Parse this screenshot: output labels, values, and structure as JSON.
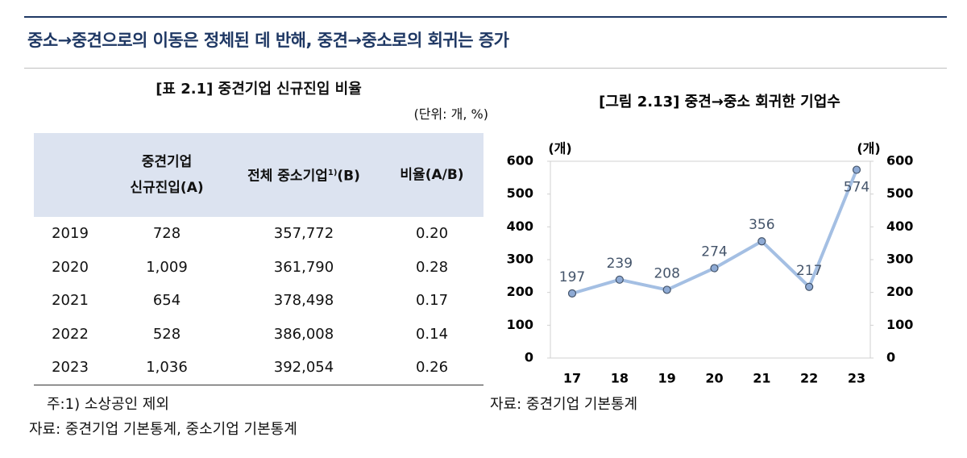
{
  "header": {
    "title": "중소→중견으로의 이동은 정체된 데 반해, 중견→중소로의 회귀는 증가"
  },
  "table": {
    "title": "[표 2.1] 중견기업 신규진입 비율",
    "unit": "(단위:  개, %)",
    "columns": [
      [
        "중견기업",
        "신규진입(A)"
      ],
      [
        "전체 중소기업",
        "1)",
        "(B)"
      ],
      [
        "비율(A/B)"
      ]
    ],
    "rows": [
      [
        "2019",
        "728",
        "357,772",
        "0.20"
      ],
      [
        "2020",
        "1,009",
        "361,790",
        "0.28"
      ],
      [
        "2021",
        "654",
        "378,498",
        "0.17"
      ],
      [
        "2022",
        "528",
        "386,008",
        "0.14"
      ],
      [
        "2023",
        "1,036",
        "392,054",
        "0.26"
      ]
    ],
    "notes": [
      "주:1) 소상공인 제외",
      "자료: 중견기업 기본통계, 중소기업 기본통계"
    ]
  },
  "chart_data": {
    "type": "line",
    "title": "[그림 2.13] 중견→중소 회귀한 기업수",
    "y_unit": "(개)",
    "y2_unit": "(개)",
    "categories": [
      "17",
      "18",
      "19",
      "20",
      "21",
      "22",
      "23"
    ],
    "series": [
      {
        "color": "#a4bfe3",
        "marker_color": "#8eaad4",
        "values": [
          197,
          239,
          208,
          274,
          356,
          217,
          574
        ]
      }
    ],
    "ylim": [
      0,
      600
    ],
    "yticks": [
      0,
      100,
      200,
      300,
      400,
      500,
      600
    ],
    "y2lim": [
      0,
      600
    ],
    "y2ticks": [
      0,
      100,
      200,
      300,
      400,
      500,
      600
    ],
    "source": "자료: 중견기업 기본통계"
  }
}
